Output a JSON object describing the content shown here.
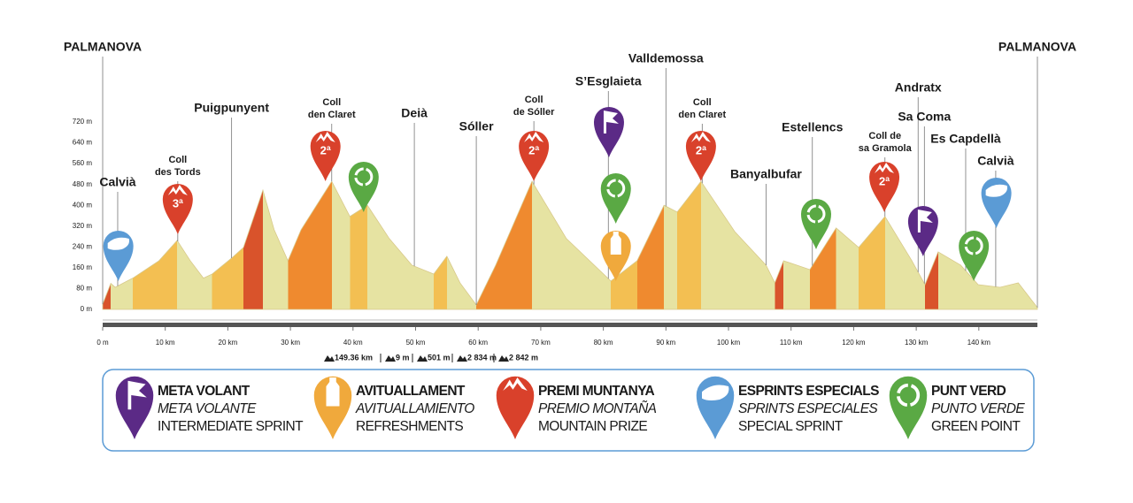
{
  "chart_data": {
    "type": "area",
    "x": [
      0,
      1.3,
      2,
      4.8,
      9,
      11.9,
      14,
      16.1,
      17.5,
      20.6,
      22.5,
      25.6,
      27.4,
      29.6,
      31.7,
      36.6,
      39.5,
      42.3,
      45.8,
      49.4,
      52.9,
      55,
      57.1,
      59.7,
      62.8,
      68.6,
      74.1,
      81.2,
      85.4,
      89.7,
      91.8,
      95.6,
      101,
      106,
      107.4,
      108.8,
      113,
      117.2,
      120.8,
      125,
      129.3,
      131.4,
      133.5,
      137.1,
      139.9,
      143.4,
      146.3,
      149.36
    ],
    "values": [
      20,
      100,
      85,
      120,
      187,
      265,
      187,
      120,
      136,
      197,
      238,
      458,
      306,
      187,
      306,
      492,
      357,
      400,
      272,
      170,
      136,
      204,
      102,
      17,
      170,
      492,
      272,
      109,
      187,
      400,
      374,
      492,
      299,
      170,
      102,
      187,
      153,
      313,
      238,
      357,
      187,
      95,
      221,
      170,
      95,
      85,
      102,
      7
    ],
    "color": "#e6e3a2",
    "xlim": [
      0,
      149.36
    ],
    "ylim": [
      0,
      720
    ],
    "xticks": [
      {
        "value": 0,
        "label": "0 m"
      },
      {
        "value": 10,
        "label": "10 km"
      },
      {
        "value": 20,
        "label": "20 km"
      },
      {
        "value": 30,
        "label": "30 km"
      },
      {
        "value": 40,
        "label": "40 km"
      },
      {
        "value": 50,
        "label": "50 km"
      },
      {
        "value": 60,
        "label": "60 km"
      },
      {
        "value": 70,
        "label": "70 km"
      },
      {
        "value": 80,
        "label": "80 km"
      },
      {
        "value": 90,
        "label": "90 km"
      },
      {
        "value": 100,
        "label": "100 km"
      },
      {
        "value": 110,
        "label": "110 km"
      },
      {
        "value": 120,
        "label": "120 km"
      },
      {
        "value": 130,
        "label": "130 km"
      },
      {
        "value": 140,
        "label": "140 km"
      }
    ],
    "yticks": [
      {
        "value": 0,
        "label": "0 m"
      },
      {
        "value": 80,
        "label": "80 m"
      },
      {
        "value": 160,
        "label": "160 m"
      },
      {
        "value": 240,
        "label": "240 m"
      },
      {
        "value": 320,
        "label": "320 m"
      },
      {
        "value": 400,
        "label": "400 m"
      },
      {
        "value": 480,
        "label": "480 m"
      },
      {
        "value": 560,
        "label": "560 m"
      },
      {
        "value": 640,
        "label": "640 m"
      },
      {
        "value": 720,
        "label": "720 m"
      }
    ],
    "places": [
      {
        "name": [
          "PALMANOVA"
        ],
        "km": 0
      },
      {
        "name": [
          "Calvià"
        ],
        "km": 2.4
      },
      {
        "name": [
          "Coll",
          "des Tords"
        ],
        "km": 12
      },
      {
        "name": [
          "Puigpunyent"
        ],
        "km": 20.6
      },
      {
        "name": [
          "Coll",
          "den Claret"
        ],
        "km": 36.6
      },
      {
        "name": [
          "Deià"
        ],
        "km": 49.8
      },
      {
        "name": [
          "Sóller"
        ],
        "km": 59.7
      },
      {
        "name": [
          "Coll",
          "de Sóller"
        ],
        "km": 68.9
      },
      {
        "name": [
          "S’Esglaieta"
        ],
        "km": 80.8
      },
      {
        "name": [
          "Valldemossa"
        ],
        "km": 90
      },
      {
        "name": [
          "Coll",
          "den Claret"
        ],
        "km": 95.8
      },
      {
        "name": [
          "Banyalbufar"
        ],
        "km": 106
      },
      {
        "name": [
          "Estellencs"
        ],
        "km": 113.4
      },
      {
        "name": [
          "Coll de",
          "sa Gramola"
        ],
        "km": 125
      },
      {
        "name": [
          "Andratx"
        ],
        "km": 130.3
      },
      {
        "name": [
          "Sa Coma"
        ],
        "km": 131.3
      },
      {
        "name": [
          "Es Capdellà"
        ],
        "km": 137.9
      },
      {
        "name": [
          "Calvià"
        ],
        "km": 142.7
      },
      {
        "name": [
          "PALMANOVA"
        ],
        "km": 149.36
      }
    ],
    "markers": [
      {
        "kind": "sprint",
        "km": 2.5
      },
      {
        "kind": "mountain",
        "km": 12,
        "label": "3ª"
      },
      {
        "kind": "mountain",
        "km": 35.6,
        "label": "2ª"
      },
      {
        "kind": "green",
        "km": 41.7
      },
      {
        "kind": "mountain",
        "km": 68.9,
        "label": "2ª"
      },
      {
        "kind": "sprint-flag",
        "km": 80.9
      },
      {
        "kind": "green",
        "km": 82
      },
      {
        "kind": "refreshment",
        "km": 82
      },
      {
        "kind": "mountain",
        "km": 95.6,
        "label": "2ª"
      },
      {
        "kind": "green",
        "km": 114
      },
      {
        "kind": "mountain",
        "km": 124.9,
        "label": "2ª"
      },
      {
        "kind": "sprint-flag",
        "km": 131.1
      },
      {
        "kind": "green",
        "km": 139.2
      },
      {
        "kind": "sprint",
        "km": 142.8
      }
    ],
    "stats": [
      "149.36 km",
      "9 m",
      "501 m",
      "2 834 m",
      "2 842 m"
    ],
    "legend": [
      {
        "kind": "sprint-flag",
        "lines": [
          "META VOLANT",
          "META VOLANTE",
          "INTERMEDIATE SPRINT"
        ]
      },
      {
        "kind": "refreshment",
        "lines": [
          "AVITUALLAMENT",
          "AVITUALLAMIENTO",
          "REFRESHMENTS"
        ]
      },
      {
        "kind": "mountain",
        "lines": [
          "PREMI MUNTANYA",
          "PREMIO MONTAÑA",
          "MOUNTAIN PRIZE"
        ]
      },
      {
        "kind": "sprint",
        "lines": [
          "ESPRINTS ESPECIALS",
          "SPRINTS ESPECIALES",
          "SPECIAL SPRINT"
        ]
      },
      {
        "kind": "green",
        "lines": [
          "PUNT VERD",
          "PUNTO VERDE",
          "GREEN POINT"
        ]
      }
    ]
  }
}
